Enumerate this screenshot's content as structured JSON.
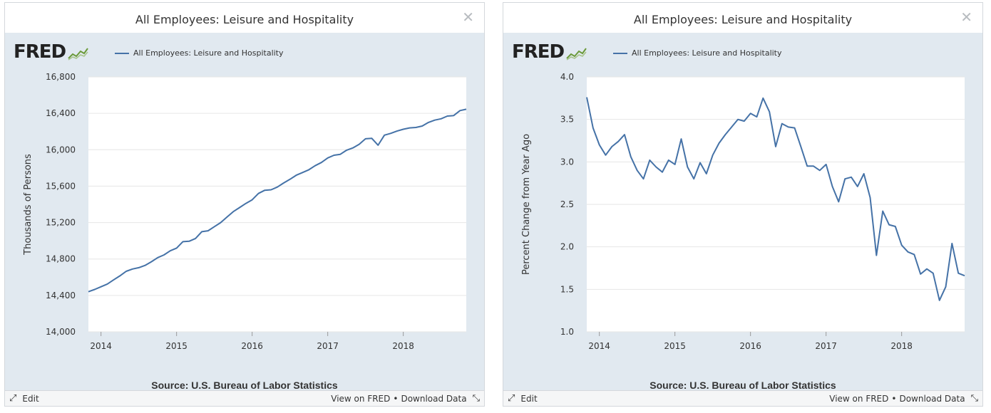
{
  "panels": [
    {
      "title": "All Employees: Leisure and Hospitality",
      "logo_text": "FRED",
      "legend": "All Employees: Leisure and Hospitality",
      "ylabel": "Thousands of Persons",
      "source": "Source: U.S. Bureau of Labor Statistics",
      "edit_label": "Edit",
      "view_label": "View on FRED",
      "download_label": "Download Data",
      "separator": "•",
      "yticks": [
        "14,000",
        "14,400",
        "14,800",
        "15,200",
        "15,600",
        "16,000",
        "16,400",
        "16,800"
      ],
      "xticks": [
        "2014",
        "2015",
        "2016",
        "2017",
        "2018"
      ]
    },
    {
      "title": "All Employees: Leisure and Hospitality",
      "logo_text": "FRED",
      "legend": "All Employees: Leisure and Hospitality",
      "ylabel": "Percent Change from Year Ago",
      "source": "Source: U.S. Bureau of Labor Statistics",
      "edit_label": "Edit",
      "view_label": "View on FRED",
      "download_label": "Download Data",
      "separator": "•",
      "yticks": [
        "1.0",
        "1.5",
        "2.0",
        "2.5",
        "3.0",
        "3.5",
        "4.0"
      ],
      "xticks": [
        "2014",
        "2015",
        "2016",
        "2017",
        "2018"
      ]
    }
  ],
  "colors": {
    "series": "#4572a7",
    "plot_bg": "#ffffff",
    "chart_bg": "#e1e9f0",
    "grid": "#e6e6e6"
  },
  "chart_data": [
    {
      "type": "line",
      "title": "All Employees: Leisure and Hospitality",
      "xlabel": "",
      "ylabel": "Thousands of Persons",
      "ylim": [
        14000,
        16800
      ],
      "xlim": [
        "2013-11",
        "2018-11"
      ],
      "series": [
        {
          "name": "All Employees: Leisure and Hospitality",
          "x": [
            "2013-11",
            "2013-12",
            "2014-01",
            "2014-02",
            "2014-03",
            "2014-04",
            "2014-05",
            "2014-06",
            "2014-07",
            "2014-08",
            "2014-09",
            "2014-10",
            "2014-11",
            "2014-12",
            "2015-01",
            "2015-02",
            "2015-03",
            "2015-04",
            "2015-05",
            "2015-06",
            "2015-07",
            "2015-08",
            "2015-09",
            "2015-10",
            "2015-11",
            "2015-12",
            "2016-01",
            "2016-02",
            "2016-03",
            "2016-04",
            "2016-05",
            "2016-06",
            "2016-07",
            "2016-08",
            "2016-09",
            "2016-10",
            "2016-11",
            "2016-12",
            "2017-01",
            "2017-02",
            "2017-03",
            "2017-04",
            "2017-05",
            "2017-06",
            "2017-07",
            "2017-08",
            "2017-09",
            "2017-10",
            "2017-11",
            "2017-12",
            "2018-01",
            "2018-02",
            "2018-03",
            "2018-04",
            "2018-05",
            "2018-06",
            "2018-07",
            "2018-08",
            "2018-09",
            "2018-10",
            "2018-11"
          ],
          "values": [
            14440,
            14465,
            14495,
            14525,
            14570,
            14615,
            14665,
            14690,
            14705,
            14730,
            14770,
            14815,
            14845,
            14890,
            14920,
            14990,
            14995,
            15025,
            15100,
            15110,
            15155,
            15200,
            15260,
            15320,
            15365,
            15410,
            15450,
            15520,
            15555,
            15560,
            15590,
            15635,
            15675,
            15720,
            15750,
            15780,
            15825,
            15860,
            15910,
            15940,
            15950,
            15995,
            16020,
            16060,
            16120,
            16125,
            16050,
            16160,
            16180,
            16205,
            16225,
            16240,
            16245,
            16260,
            16300,
            16325,
            16340,
            16370,
            16375,
            16430,
            16445
          ]
        }
      ]
    },
    {
      "type": "line",
      "title": "All Employees: Leisure and Hospitality",
      "xlabel": "",
      "ylabel": "Percent Change from Year Ago",
      "ylim": [
        1.0,
        4.0
      ],
      "xlim": [
        "2013-11",
        "2018-11"
      ],
      "series": [
        {
          "name": "All Employees: Leisure and Hospitality",
          "x": [
            "2013-11",
            "2013-12",
            "2014-01",
            "2014-02",
            "2014-03",
            "2014-04",
            "2014-05",
            "2014-06",
            "2014-07",
            "2014-08",
            "2014-09",
            "2014-10",
            "2014-11",
            "2014-12",
            "2015-01",
            "2015-02",
            "2015-03",
            "2015-04",
            "2015-05",
            "2015-06",
            "2015-07",
            "2015-08",
            "2015-09",
            "2015-10",
            "2015-11",
            "2015-12",
            "2016-01",
            "2016-02",
            "2016-03",
            "2016-04",
            "2016-05",
            "2016-06",
            "2016-07",
            "2016-08",
            "2016-09",
            "2016-10",
            "2016-11",
            "2016-12",
            "2017-01",
            "2017-02",
            "2017-03",
            "2017-04",
            "2017-05",
            "2017-06",
            "2017-07",
            "2017-08",
            "2017-09",
            "2017-10",
            "2017-11",
            "2017-12",
            "2018-01",
            "2018-02",
            "2018-03",
            "2018-04",
            "2018-05",
            "2018-06",
            "2018-07",
            "2018-08",
            "2018-09",
            "2018-10",
            "2018-11"
          ],
          "values": [
            3.76,
            3.4,
            3.2,
            3.08,
            3.18,
            3.24,
            3.32,
            3.06,
            2.9,
            2.8,
            3.02,
            2.94,
            2.88,
            3.02,
            2.97,
            3.27,
            2.94,
            2.8,
            2.99,
            2.86,
            3.08,
            3.22,
            3.32,
            3.41,
            3.5,
            3.48,
            3.57,
            3.53,
            3.75,
            3.59,
            3.18,
            3.45,
            3.41,
            3.4,
            3.18,
            2.95,
            2.95,
            2.9,
            2.97,
            2.71,
            2.53,
            2.8,
            2.82,
            2.71,
            2.86,
            2.58,
            1.9,
            2.42,
            2.26,
            2.24,
            2.02,
            1.94,
            1.91,
            1.68,
            1.74,
            1.69,
            1.37,
            1.53,
            2.04,
            1.69,
            1.66
          ]
        }
      ]
    }
  ]
}
